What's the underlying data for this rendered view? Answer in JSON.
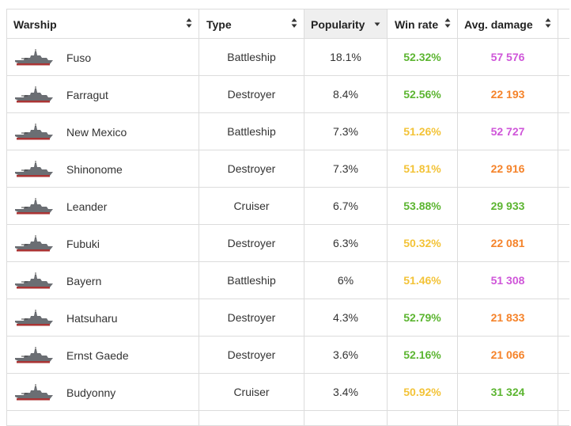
{
  "colors": {
    "green": "#5cb531",
    "yellow": "#f3c338",
    "orange": "#f5832a",
    "purple": "#cf56d9"
  },
  "headers": {
    "warship": "Warship",
    "type": "Type",
    "popularity": "Popularity",
    "win_rate": "Win rate",
    "avg_damage": "Avg. damage"
  },
  "sort": {
    "column": "popularity",
    "direction": "descending"
  },
  "rows": [
    {
      "name": "Fuso",
      "type": "Battleship",
      "popularity": "18.1%",
      "win_rate": "52.32%",
      "win_color": "green",
      "avg_damage": "57 576",
      "dmg_color": "purple",
      "icon": "battleship-icon"
    },
    {
      "name": "Farragut",
      "type": "Destroyer",
      "popularity": "8.4%",
      "win_rate": "52.56%",
      "win_color": "green",
      "avg_damage": "22 193",
      "dmg_color": "orange",
      "icon": "destroyer-icon"
    },
    {
      "name": "New Mexico",
      "type": "Battleship",
      "popularity": "7.3%",
      "win_rate": "51.26%",
      "win_color": "yellow",
      "avg_damage": "52 727",
      "dmg_color": "purple",
      "icon": "battleship-icon"
    },
    {
      "name": "Shinonome",
      "type": "Destroyer",
      "popularity": "7.3%",
      "win_rate": "51.81%",
      "win_color": "yellow",
      "avg_damage": "22 916",
      "dmg_color": "orange",
      "icon": "destroyer-icon"
    },
    {
      "name": "Leander",
      "type": "Cruiser",
      "popularity": "6.7%",
      "win_rate": "53.88%",
      "win_color": "green",
      "avg_damage": "29 933",
      "dmg_color": "green",
      "icon": "cruiser-icon"
    },
    {
      "name": "Fubuki",
      "type": "Destroyer",
      "popularity": "6.3%",
      "win_rate": "50.32%",
      "win_color": "yellow",
      "avg_damage": "22 081",
      "dmg_color": "orange",
      "icon": "destroyer-icon"
    },
    {
      "name": "Bayern",
      "type": "Battleship",
      "popularity": "6%",
      "win_rate": "51.46%",
      "win_color": "yellow",
      "avg_damage": "51 308",
      "dmg_color": "purple",
      "icon": "battleship-icon"
    },
    {
      "name": "Hatsuharu",
      "type": "Destroyer",
      "popularity": "4.3%",
      "win_rate": "52.79%",
      "win_color": "green",
      "avg_damage": "21 833",
      "dmg_color": "orange",
      "icon": "destroyer-icon"
    },
    {
      "name": "Ernst Gaede",
      "type": "Destroyer",
      "popularity": "3.6%",
      "win_rate": "52.16%",
      "win_color": "green",
      "avg_damage": "21 066",
      "dmg_color": "orange",
      "icon": "destroyer-icon"
    },
    {
      "name": "Budyonny",
      "type": "Cruiser",
      "popularity": "3.4%",
      "win_rate": "50.92%",
      "win_color": "yellow",
      "avg_damage": "31 324",
      "dmg_color": "green",
      "icon": "cruiser-icon"
    }
  ]
}
